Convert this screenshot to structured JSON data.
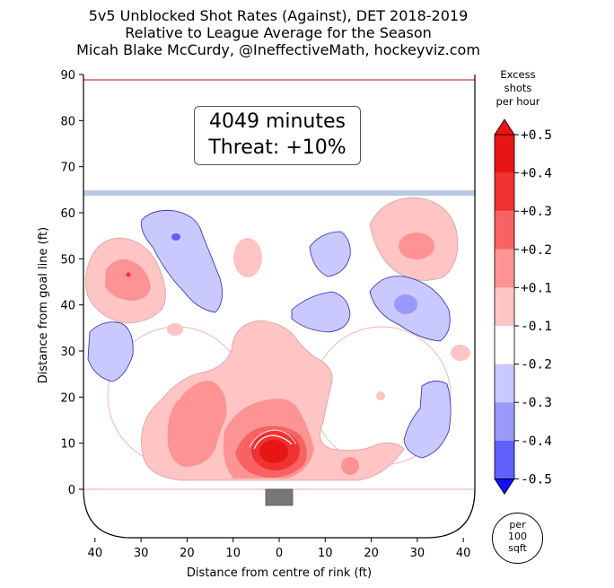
{
  "title": {
    "line1": "5v5 Unblocked Shot Rates (Against), DET 2018-2019",
    "line2": "Relative to League Average for the Season",
    "line3": "Micah Blake McCurdy, @IneffectiveMath, hockeyviz.com"
  },
  "info": {
    "minutes": "4049 minutes",
    "threat": "Threat: +10%"
  },
  "colorbar": {
    "title_lines": [
      "Excess",
      "shots",
      "per hour"
    ],
    "labels": [
      "+0.5",
      "+0.4",
      "+0.3",
      "+0.2",
      "+0.1",
      "-0.1",
      "-0.2",
      "-0.3",
      "-0.4",
      "-0.5"
    ],
    "unit_lines": [
      "per",
      "100",
      "sqft"
    ]
  },
  "colors": {
    "pos1": "#ffc4c4",
    "pos2": "#fe9393",
    "pos3": "#f96262",
    "pos4": "#f03232",
    "pos5": "#e81515",
    "neg1": "#c9c9ff",
    "neg2": "#9999fb",
    "neg3": "#6060fb",
    "neg4": "#2f2ffb",
    "neg5": "#1111ff",
    "blue_line": "#b8cbe4",
    "red_line": "#d98989",
    "net": "#777777"
  },
  "chart_data": {
    "type": "heatmap",
    "xlabel": "Distance from centre of rink (ft)",
    "ylabel": "Distance from goal line (ft)",
    "xlim": [
      42.5,
      -42.5
    ],
    "ylim": [
      -11,
      90
    ],
    "x_ticks": [
      40,
      30,
      20,
      10,
      0,
      10,
      20,
      30,
      40
    ],
    "y_ticks": [
      0,
      10,
      20,
      30,
      40,
      50,
      60,
      70,
      80,
      90
    ],
    "color_scale": {
      "unit": "excess shots per hour per 100 sqft",
      "min": -0.5,
      "max": 0.5,
      "levels": [
        -0.5,
        -0.4,
        -0.3,
        -0.2,
        -0.1,
        0.1,
        0.2,
        0.3,
        0.4,
        0.5
      ]
    },
    "regions": [
      {
        "polarity": "positive",
        "peak_level": 0.4,
        "center": [
          1,
          8
        ],
        "desc": "high-danger slot in front of net"
      },
      {
        "polarity": "positive",
        "peak_level": 0.1,
        "center": [
          0,
          20
        ],
        "desc": "broad low-slot area"
      },
      {
        "polarity": "positive",
        "peak_level": 0.2,
        "center": [
          33,
          47
        ],
        "desc": "left point"
      },
      {
        "polarity": "positive",
        "peak_level": 0.2,
        "center": [
          -30,
          53
        ],
        "desc": "right point"
      },
      {
        "polarity": "positive",
        "peak_level": 0.1,
        "center": [
          6,
          51
        ],
        "desc": "high centre"
      },
      {
        "polarity": "positive",
        "peak_level": 0.1,
        "center": [
          -16,
          5
        ],
        "desc": "right low circle"
      },
      {
        "polarity": "negative",
        "peak_level": -0.1,
        "center": [
          19,
          55
        ],
        "desc": "left high"
      },
      {
        "polarity": "negative",
        "peak_level": -0.2,
        "center": [
          -29,
          41
        ],
        "desc": "right high"
      },
      {
        "polarity": "negative",
        "peak_level": -0.1,
        "center": [
          37,
          30
        ],
        "desc": "left boards"
      },
      {
        "polarity": "negative",
        "peak_level": -0.1,
        "center": [
          -33,
          16
        ],
        "desc": "right boards"
      },
      {
        "polarity": "negative",
        "peak_level": -0.1,
        "center": [
          -12,
          40
        ],
        "desc": "right middle"
      },
      {
        "polarity": "negative",
        "peak_level": -0.1,
        "center": [
          -11,
          51
        ],
        "desc": "right upper middle"
      }
    ]
  }
}
